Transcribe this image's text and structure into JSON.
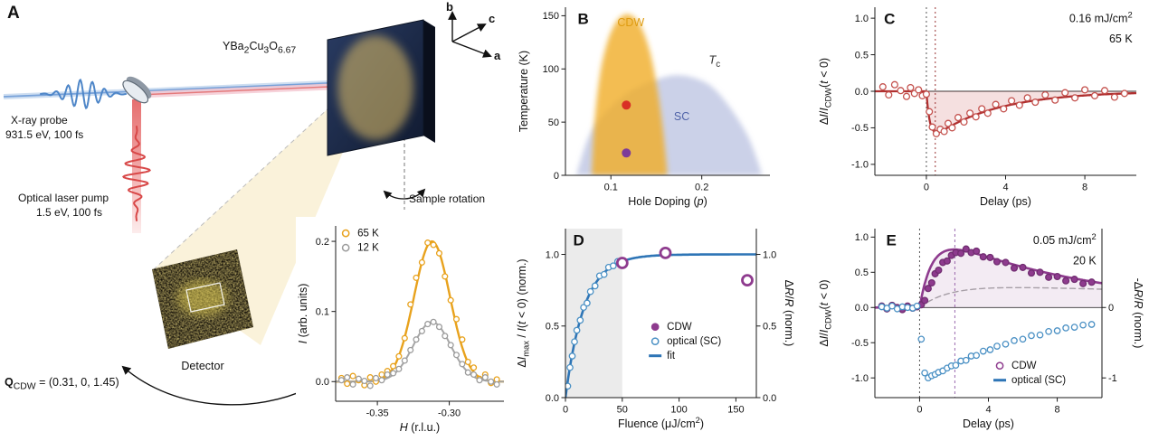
{
  "panelA": {
    "label": "A",
    "xray_probe_line1": "X-ray probe",
    "xray_probe_line2": "931.5 eV, 100 fs",
    "pump_line1": "Optical laser pump",
    "pump_line2": "1.5 eV, 100 fs",
    "sample_label": "YBa_{2}Cu_{3}O_{6.67}",
    "axis_b": "b",
    "axis_c": "c",
    "axis_a": "a",
    "sample_rotation_label": "Sample rotation",
    "detector_label": "Detector",
    "q_cdw_label": "**Q**_{CDW} = (0.31, 0, 1.45)"
  },
  "chart_data": [
    {
      "id": "a-inset",
      "type": "scatter",
      "title": "",
      "xlabel": "*H* (r.l.u.)",
      "ylabel": "*I* (arb. units)",
      "xlim": [
        -0.379,
        -0.262
      ],
      "ylim": [
        -0.028,
        0.222
      ],
      "xticks": [
        -0.35,
        -0.3
      ],
      "xtick_labels": [
        "-0.35",
        "-0.30"
      ],
      "yticks": [
        0,
        0.1,
        0.2
      ],
      "ytick_labels": [
        "0.0",
        "0.1",
        "0.2"
      ],
      "series": [
        {
          "name": "65 K fit",
          "kind": "gauss",
          "amp": 0.2,
          "mu": -0.312,
          "sigma": 0.0125,
          "color": "#E8A21D",
          "w": 2.4
        },
        {
          "name": "12 K fit",
          "kind": "gauss",
          "amp": 0.085,
          "mu": -0.312,
          "sigma": 0.013,
          "color": "#A6A6A6",
          "w": 2
        },
        {
          "name": "65 K",
          "kind": "scatter",
          "marker": "open",
          "color": "#E8A21D",
          "r": 2.9,
          "x": [
            -0.375,
            -0.371,
            -0.367,
            -0.363,
            -0.359,
            -0.355,
            -0.351,
            -0.347,
            -0.343,
            -0.339,
            -0.335,
            -0.331,
            -0.327,
            -0.323,
            -0.319,
            -0.315,
            -0.311,
            -0.307,
            -0.303,
            -0.299,
            -0.295,
            -0.291,
            -0.287,
            -0.283,
            -0.279,
            -0.275,
            -0.271,
            -0.267
          ],
          "y": [
            0.005,
            -0.003,
            0.008,
            0.002,
            -0.005,
            0.006,
            0,
            0.01,
            0.015,
            0.022,
            0.036,
            0.062,
            0.11,
            0.148,
            0.17,
            0.198,
            0.195,
            0.183,
            0.15,
            0.116,
            0.089,
            0.06,
            0.028,
            0.02,
            0.004,
            0.01,
            -0.002,
            0.003
          ]
        },
        {
          "name": "12 K",
          "kind": "scatter",
          "marker": "open",
          "color": "#9C9C9C",
          "r": 2.9,
          "x": [
            -0.375,
            -0.371,
            -0.367,
            -0.363,
            -0.359,
            -0.355,
            -0.351,
            -0.347,
            -0.343,
            -0.339,
            -0.335,
            -0.331,
            -0.327,
            -0.323,
            -0.319,
            -0.315,
            -0.311,
            -0.307,
            -0.303,
            -0.299,
            -0.295,
            -0.291,
            -0.287,
            -0.283,
            -0.279,
            -0.275,
            -0.271,
            -0.267
          ],
          "y": [
            0.002,
            0.006,
            -0.004,
            0.004,
            0.001,
            -0.006,
            0.005,
            0.002,
            0.01,
            0.012,
            0.018,
            0.03,
            0.045,
            0.06,
            0.072,
            0.082,
            0.085,
            0.078,
            0.065,
            0.052,
            0.038,
            0.025,
            0.013,
            0.01,
            0.002,
            0.006,
            0,
            -0.004
          ]
        }
      ],
      "legend": {
        "fx": 0.06,
        "fy": 0.06,
        "items": [
          {
            "label": "65 K",
            "marker": "circle-open",
            "color": "#E8A21D"
          },
          {
            "label": "12 K",
            "marker": "circle-open",
            "color": "#9C9C9C"
          }
        ]
      }
    },
    {
      "id": "phase-diagram",
      "type": "area",
      "xlabel": "Hole Doping (*p*)",
      "ylabel": "Temperature (K)",
      "xlim": [
        0.05,
        0.275
      ],
      "ylim": [
        0,
        158
      ],
      "xticks": [
        0.1,
        0.2
      ],
      "xtick_labels": [
        "0.1",
        "0.2"
      ],
      "yticks": [
        0,
        50,
        100,
        150
      ],
      "ytick_labels": [
        "0",
        "50",
        "100",
        "150"
      ],
      "domes": [
        {
          "name": "SC",
          "color": "#A8B2D8",
          "opacity": 0.6,
          "points": [
            [
              0.062,
              0
            ],
            [
              0.075,
              35
            ],
            [
              0.09,
              55
            ],
            [
              0.11,
              72
            ],
            [
              0.13,
              83
            ],
            [
              0.15,
              90
            ],
            [
              0.17,
              94
            ],
            [
              0.19,
              92
            ],
            [
              0.21,
              84
            ],
            [
              0.23,
              65
            ],
            [
              0.25,
              38
            ],
            [
              0.262,
              12
            ],
            [
              0.266,
              0
            ]
          ]
        },
        {
          "name": "CDW",
          "color": "#F0AC28",
          "opacity": 0.8,
          "points": [
            [
              0.079,
              0
            ],
            [
              0.082,
              50
            ],
            [
              0.088,
              95
            ],
            [
              0.096,
              125
            ],
            [
              0.105,
              143
            ],
            [
              0.115,
              151
            ],
            [
              0.125,
              149
            ],
            [
              0.134,
              138
            ],
            [
              0.143,
              116
            ],
            [
              0.151,
              82
            ],
            [
              0.157,
              45
            ],
            [
              0.161,
              12
            ],
            [
              0.162,
              0
            ]
          ]
        }
      ],
      "labels": [
        {
          "t": "CDW",
          "x": 0.122,
          "y": 140,
          "color": "#DE9B10",
          "size": 12.5
        },
        {
          "t": "SC",
          "x": 0.178,
          "y": 52,
          "color": "#5063A8",
          "size": 12.5
        },
        {
          "t": "*T*_{c}",
          "x": 0.214,
          "y": 105,
          "color": "#333333",
          "size": 13
        }
      ],
      "markers": [
        {
          "x": 0.117,
          "y": 66,
          "color": "#D93025",
          "r": 5
        },
        {
          "x": 0.117,
          "y": 21,
          "color": "#7D3C98",
          "r": 5
        }
      ],
      "annotations": [
        {
          "t": "B",
          "fx": 0.06,
          "fy": 0.1,
          "size": 17,
          "weight": "bold"
        }
      ]
    },
    {
      "id": "cdw-dynamics-65K",
      "type": "scatter",
      "xlabel": "Delay (ps)",
      "ylabel": "Δ*I*/*I*_{CDW}(*t* < 0)",
      "xlim": [
        -2.6,
        10.6
      ],
      "ylim": [
        -1.15,
        1.15
      ],
      "xticks": [
        0,
        4,
        8
      ],
      "xtick_labels": [
        "0",
        "4",
        "8"
      ],
      "yticks": [
        -1,
        -0.5,
        0,
        0.5,
        1
      ],
      "ytick_labels": [
        "-1.0",
        "-0.5",
        "0.0",
        "0.5",
        "1.0"
      ],
      "hline0": true,
      "vlines": [
        {
          "x": 0,
          "dash": "2 3",
          "color": "#555555",
          "w": 1
        },
        {
          "x": 0.45,
          "dash": "2 3",
          "color": "#993333",
          "w": 1
        }
      ],
      "annotations": [
        {
          "t": "C",
          "fx": 0.035,
          "fy": 0.1,
          "size": 17,
          "weight": "bold"
        },
        {
          "t": "0.16 mJ/cm^{2}",
          "fx": 0.985,
          "fy": 0.09,
          "anchor": "end",
          "size": 12.5
        },
        {
          "t": "65 K",
          "fx": 0.985,
          "fy": 0.21,
          "anchor": "end",
          "size": 12.5
        }
      ],
      "series": [
        {
          "name": "fit",
          "kind": "pump",
          "A": -0.7,
          "tr": 0.18,
          "td": 3.2,
          "color": "#B03030",
          "w": 2.3,
          "fill": "rgba(190,48,48,0.15)"
        },
        {
          "name": "CDW 65 K",
          "kind": "scatter",
          "marker": "open",
          "color": "#C4524E",
          "r": 3.4,
          "x": [
            -2.2,
            -1.9,
            -1.6,
            -1.3,
            -1.0,
            -0.8,
            -0.6,
            -0.4,
            -0.2,
            0.0,
            0.15,
            0.3,
            0.5,
            0.7,
            0.9,
            1.1,
            1.3,
            1.6,
            1.9,
            2.2,
            2.5,
            2.8,
            3.1,
            3.5,
            3.9,
            4.3,
            4.7,
            5.1,
            5.5,
            6.0,
            6.5,
            7.0,
            7.5,
            8.0,
            8.5,
            9.0,
            9.5,
            10.0
          ],
          "y": [
            0.06,
            -0.05,
            0.09,
            0.01,
            -0.07,
            0.05,
            -0.03,
            0.02,
            -0.06,
            -0.04,
            -0.28,
            -0.49,
            -0.58,
            -0.52,
            -0.55,
            -0.44,
            -0.5,
            -0.36,
            -0.42,
            -0.3,
            -0.35,
            -0.24,
            -0.3,
            -0.18,
            -0.24,
            -0.13,
            -0.19,
            -0.09,
            -0.15,
            -0.05,
            -0.12,
            -0.02,
            -0.09,
            0.02,
            -0.06,
            0.01,
            -0.08,
            -0.03
          ]
        }
      ]
    },
    {
      "id": "fluence-dependence",
      "type": "scatter",
      "xlabel": "Fluence (μJ/cm^{2})",
      "ylabel": "Δ*I*_{max} / *I*(*t* < 0) (norm.)",
      "ylabel_right": "Δ*R*/*R* (norm.)",
      "xlim": [
        0,
        168
      ],
      "ylim": [
        0,
        1.18
      ],
      "xticks": [
        0,
        50,
        100,
        150
      ],
      "xtick_labels": [
        "0",
        "50",
        "100",
        "150"
      ],
      "yticks": [
        0,
        0.5,
        1
      ],
      "ytick_labels": [
        "0.0",
        "0.5",
        "1.0"
      ],
      "right_ticks": [
        0,
        0.5,
        1
      ],
      "right_labels": [
        "0.0",
        "0.5",
        "1.0"
      ],
      "shade": {
        "x0": 0,
        "x1": 50,
        "color": "#EBEBEB"
      },
      "annotations": [
        {
          "t": "D",
          "fx": 0.04,
          "fy": 0.1,
          "size": 17,
          "weight": "bold"
        }
      ],
      "series": [
        {
          "name": "fit",
          "kind": "sat",
          "A": 1.0,
          "tau": 16.5,
          "color": "#2E75B6",
          "w": 2.6
        },
        {
          "name": "optical (SC)",
          "kind": "scatter",
          "marker": "open",
          "color": "#4A90C4",
          "r": 3.2,
          "x": [
            2,
            4,
            6,
            8,
            10,
            13,
            16,
            19,
            22,
            26,
            30,
            34,
            38,
            42,
            46
          ],
          "y": [
            0.08,
            0.21,
            0.29,
            0.39,
            0.47,
            0.54,
            0.63,
            0.66,
            0.74,
            0.78,
            0.85,
            0.86,
            0.91,
            0.92,
            0.95
          ]
        },
        {
          "name": "CDW",
          "kind": "scatter",
          "marker": "bold-open",
          "color": "#8E3B8E",
          "r": 5.5,
          "sw": 2.8,
          "x": [
            50,
            88,
            160
          ],
          "y": [
            0.94,
            1.01,
            0.82
          ]
        }
      ],
      "legend": {
        "fx": 0.47,
        "fy": 0.6,
        "items": [
          {
            "label": "CDW",
            "marker": "circle-filled",
            "color": "#8E3B8E"
          },
          {
            "label": "optical (SC)",
            "marker": "circle-open",
            "color": "#4A90C4"
          },
          {
            "label": "fit",
            "marker": "line",
            "color": "#2E75B6"
          }
        ]
      }
    },
    {
      "id": "cdw-dynamics-20K",
      "type": "scatter",
      "xlabel": "Delay (ps)",
      "ylabel": "Δ*I*/*I*_{CDW}(*t* < 0)",
      "ylabel_right": "-Δ*R*/*R* (norm.)",
      "xlim": [
        -2.6,
        10.6
      ],
      "ylim": [
        -1.28,
        1.12
      ],
      "xticks": [
        0,
        4,
        8
      ],
      "xtick_labels": [
        "0",
        "4",
        "8"
      ],
      "yticks": [
        -1,
        -0.5,
        0,
        0.5,
        1
      ],
      "ytick_labels": [
        "-1.0",
        "-0.5",
        "0.0",
        "0.5",
        "1.0"
      ],
      "right_ticks": [
        -1,
        0
      ],
      "right_labels": [
        "-1",
        "0"
      ],
      "hline0": true,
      "vlines": [
        {
          "x": 0,
          "dash": "2 3",
          "color": "#555555",
          "w": 1
        },
        {
          "x": 2.05,
          "dash": "3 3",
          "color": "#9B6BB0",
          "w": 1
        }
      ],
      "annotations": [
        {
          "t": "E",
          "fx": 0.05,
          "fy": 0.1,
          "size": 17,
          "weight": "bold"
        },
        {
          "t": "0.05 mJ/cm^{2}",
          "fx": 0.975,
          "fy": 0.09,
          "anchor": "end",
          "size": 12.5
        },
        {
          "t": "20 K",
          "fx": 0.975,
          "fy": 0.21,
          "anchor": "end",
          "size": 12.5
        }
      ],
      "series": [
        {
          "name": "optical envelope",
          "kind": "pump",
          "A": 0.34,
          "tr": 1.8,
          "td": 40,
          "color": "#AAAAAA",
          "w": 1.4,
          "dash": "6 4"
        },
        {
          "name": "CDW fit",
          "kind": "pump",
          "A": 1.12,
          "tr": 0.8,
          "td": 9,
          "color": "#8E3B8E",
          "w": 2.6,
          "fill": "rgba(142,59,142,0.10)"
        },
        {
          "name": "CDW",
          "kind": "scatter",
          "marker": "filled",
          "color": "#8E3B8E",
          "edge": "#712D71",
          "r": 3.4,
          "x": [
            -2.2,
            -1.9,
            -1.6,
            -1.3,
            -1.0,
            -0.7,
            -0.4,
            -0.15,
            0.1,
            0.3,
            0.5,
            0.7,
            0.9,
            1.1,
            1.35,
            1.6,
            1.85,
            2.1,
            2.4,
            2.7,
            3.0,
            3.3,
            3.7,
            4.1,
            4.5,
            5.0,
            5.5,
            6.0,
            6.5,
            7.0,
            7.5,
            8.0,
            8.5,
            9.0,
            9.5,
            10.0
          ],
          "y": [
            0.02,
            -0.02,
            0.03,
            0,
            -0.03,
            0.02,
            -0.01,
            0.01,
            0.04,
            0.1,
            0.27,
            0.35,
            0.48,
            0.53,
            0.64,
            0.66,
            0.74,
            0.78,
            0.77,
            0.83,
            0.78,
            0.8,
            0.72,
            0.71,
            0.65,
            0.64,
            0.56,
            0.57,
            0.49,
            0.5,
            0.43,
            0.44,
            0.38,
            0.4,
            0.34,
            0.36
          ]
        },
        {
          "name": "optical (SC)",
          "kind": "scatter",
          "marker": "open",
          "color": "#4A90C4",
          "r": 3.2,
          "x": [
            -2.2,
            -1.9,
            -1.6,
            -1.3,
            -1.0,
            -0.7,
            -0.4,
            -0.15,
            0.1,
            0.3,
            0.5,
            0.7,
            0.9,
            1.1,
            1.35,
            1.6,
            1.85,
            2.1,
            2.4,
            2.7,
            3.0,
            3.3,
            3.7,
            4.1,
            4.5,
            5.0,
            5.5,
            6.0,
            6.5,
            7.0,
            7.5,
            8.0,
            8.5,
            9.0,
            9.5,
            10.0
          ],
          "y": [
            0.01,
            -0.01,
            0.02,
            -0.02,
            0.01,
            0,
            -0.01,
            0.02,
            -0.45,
            -0.93,
            -1.0,
            -0.97,
            -0.95,
            -0.92,
            -0.9,
            -0.86,
            -0.83,
            -0.82,
            -0.76,
            -0.75,
            -0.69,
            -0.68,
            -0.62,
            -0.6,
            -0.55,
            -0.52,
            -0.47,
            -0.45,
            -0.4,
            -0.39,
            -0.34,
            -0.33,
            -0.29,
            -0.28,
            -0.25,
            -0.24
          ]
        }
      ],
      "legend": {
        "fx": 0.55,
        "fy": 0.83,
        "items": [
          {
            "label": "CDW",
            "marker": "circle-open",
            "color": "#8E3B8E"
          },
          {
            "label": "optical (SC)",
            "marker": "line",
            "color": "#2E75B6"
          }
        ]
      }
    }
  ]
}
